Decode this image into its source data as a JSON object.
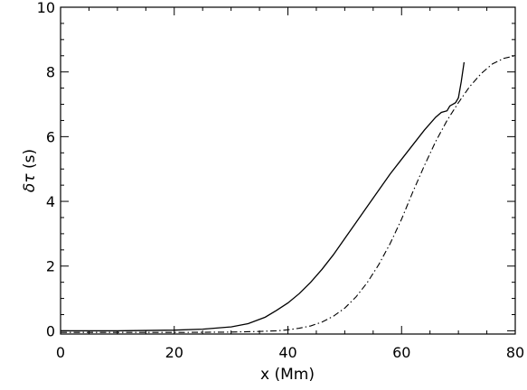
{
  "chart_data": {
    "type": "line",
    "title": "",
    "xlabel": "x (Mm)",
    "ylabel_main": "δτ",
    "ylabel_unit": " (s)",
    "xlim": [
      0,
      80
    ],
    "ylim": [
      -0.1,
      10
    ],
    "xticks": [
      0,
      20,
      40,
      60,
      80
    ],
    "yticks": [
      0,
      2,
      4,
      6,
      8,
      10
    ],
    "grid": false,
    "legend": "none",
    "series": [
      {
        "style": "solid",
        "x": [
          0,
          10,
          20,
          25,
          30,
          33,
          36,
          38,
          40,
          42,
          44,
          46,
          48,
          50,
          52,
          54,
          56,
          58,
          60,
          62,
          64,
          66,
          67,
          68,
          68.5,
          69,
          69.5,
          70,
          70.5,
          71
        ],
        "y": [
          0,
          0,
          0.02,
          0.05,
          0.12,
          0.22,
          0.42,
          0.63,
          0.86,
          1.15,
          1.5,
          1.9,
          2.35,
          2.85,
          3.35,
          3.85,
          4.35,
          4.85,
          5.3,
          5.75,
          6.2,
          6.6,
          6.75,
          6.8,
          6.95,
          7.0,
          7.05,
          7.2,
          7.7,
          8.3
        ]
      },
      {
        "style": "dash-dot",
        "x": [
          0,
          20,
          30,
          35,
          38,
          40,
          42,
          44,
          46,
          48,
          50,
          52,
          54,
          56,
          58,
          60,
          62,
          64,
          66,
          68,
          70,
          72,
          74,
          76,
          78,
          80
        ],
        "y": [
          -0.05,
          -0.05,
          -0.04,
          -0.02,
          0.0,
          0.03,
          0.08,
          0.15,
          0.27,
          0.45,
          0.7,
          1.05,
          1.5,
          2.05,
          2.7,
          3.45,
          4.3,
          5.1,
          5.85,
          6.5,
          7.05,
          7.55,
          7.95,
          8.25,
          8.42,
          8.5
        ]
      }
    ]
  }
}
